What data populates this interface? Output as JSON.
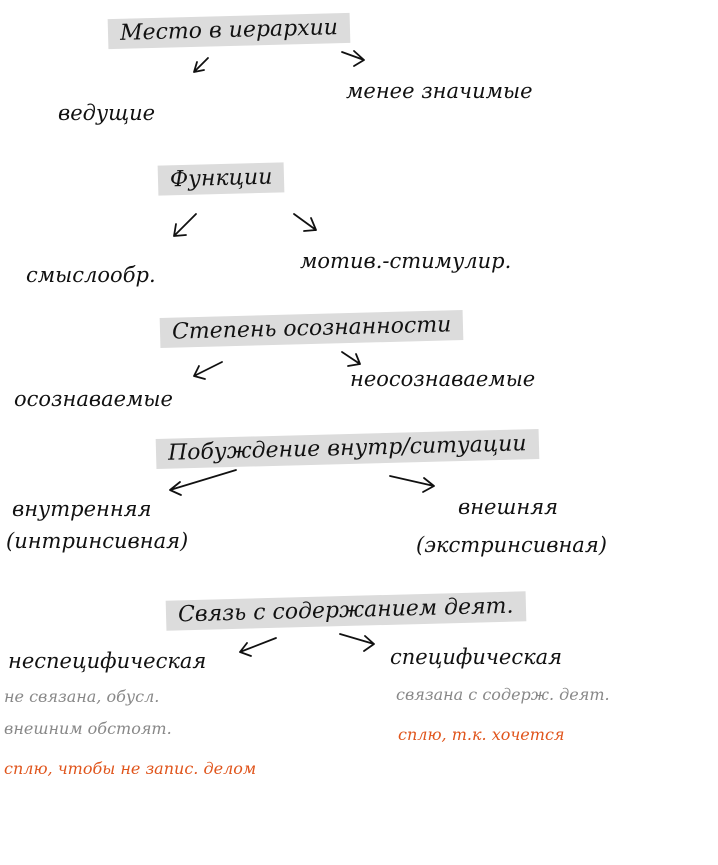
{
  "sections": [
    {
      "header": "Место в иерархии",
      "left": {
        "label": "ведущие"
      },
      "right": {
        "label": "менее значимые"
      }
    },
    {
      "header": "Функции",
      "left": {
        "label": "смыслообр."
      },
      "right": {
        "label": "мотив.-стимулир."
      }
    },
    {
      "header": "Степень осознанности",
      "left": {
        "label": "осознаваемые"
      },
      "right": {
        "label": "неосознаваемые"
      }
    },
    {
      "header": "Побуждение внутр/ситуации",
      "left": {
        "label": "внутренняя",
        "label2": "(интринсивная)"
      },
      "right": {
        "label": "внешняя",
        "label2": "(экстринсивная)"
      }
    },
    {
      "header": "Связь с содержанием деят.",
      "left": {
        "label": "неспецифическая",
        "notes": [
          "не связана, обусл.",
          "внешним обстоят."
        ],
        "accent": "сплю, чтобы не запис. делом"
      },
      "right": {
        "label": "специфическая",
        "notes": [
          "связана с содерж. деят."
        ],
        "accent": "сплю, т.к. хочется"
      }
    }
  ]
}
